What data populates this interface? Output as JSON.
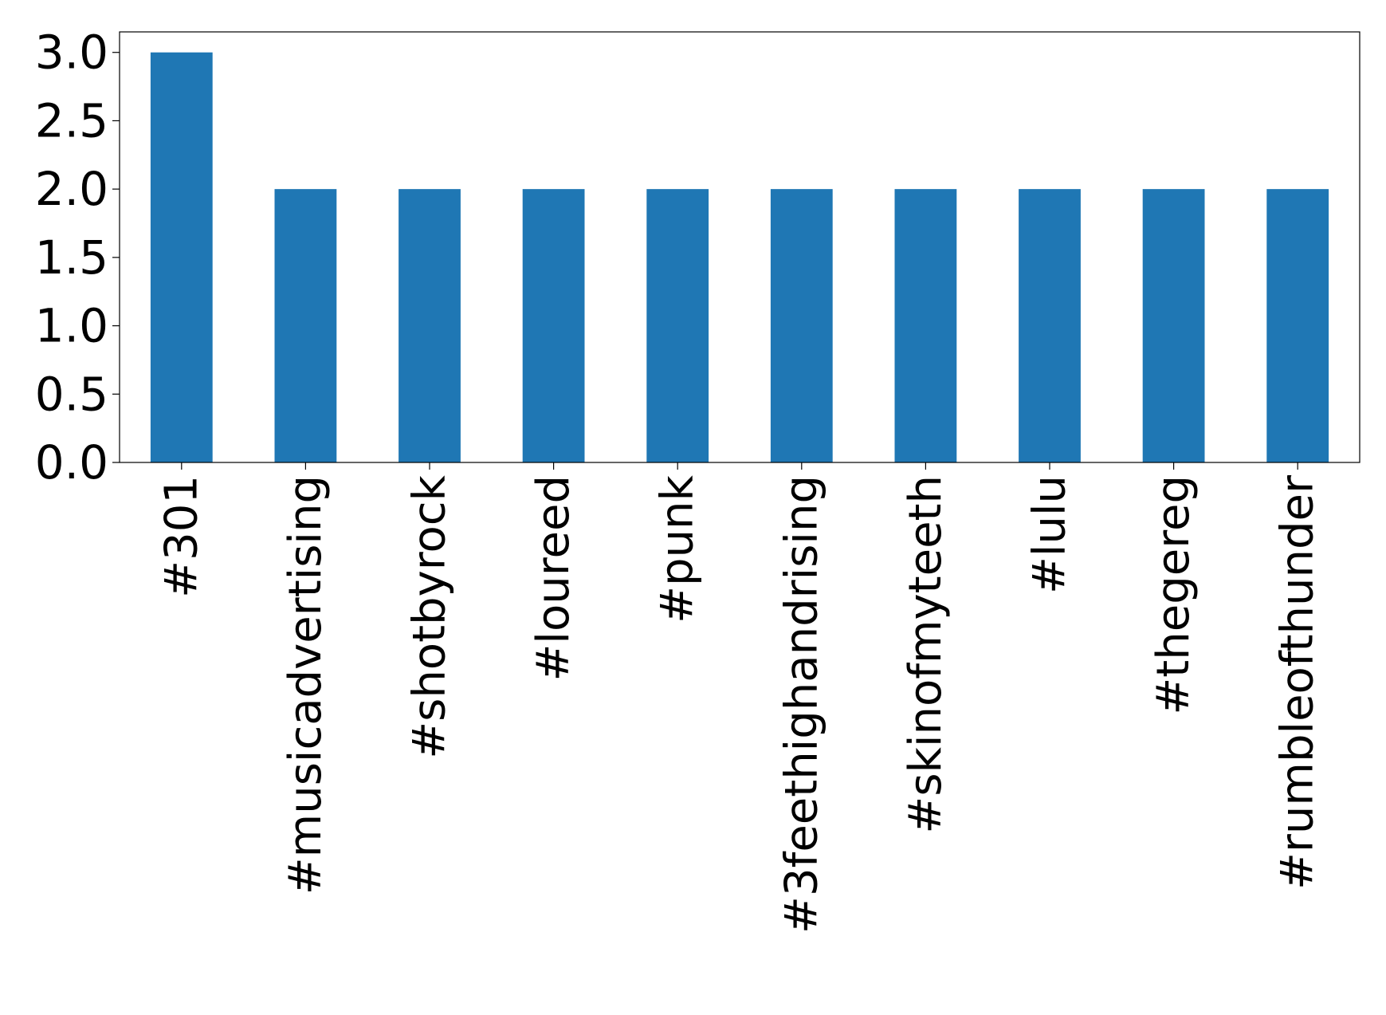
{
  "chart_data": {
    "type": "bar",
    "title": "",
    "xlabel": "",
    "ylabel": "",
    "categories": [
      "#301",
      "#musicadvertising",
      "#shotbyrock",
      "#loureed",
      "#punk",
      "#3feethighandrising",
      "#skinofmyteeth",
      "#lulu",
      "#thegereg",
      "#rumbleofthunder"
    ],
    "values": [
      3,
      2,
      2,
      2,
      2,
      2,
      2,
      2,
      2,
      2
    ],
    "ylim": [
      0,
      3.15
    ],
    "yticks": [
      0.0,
      0.5,
      1.0,
      1.5,
      2.0,
      2.5,
      3.0
    ],
    "ytick_labels": [
      "0.0",
      "0.5",
      "1.0",
      "1.5",
      "2.0",
      "2.5",
      "3.0"
    ],
    "bar_color": "#1f77b4",
    "grid": false,
    "legend": "none"
  }
}
